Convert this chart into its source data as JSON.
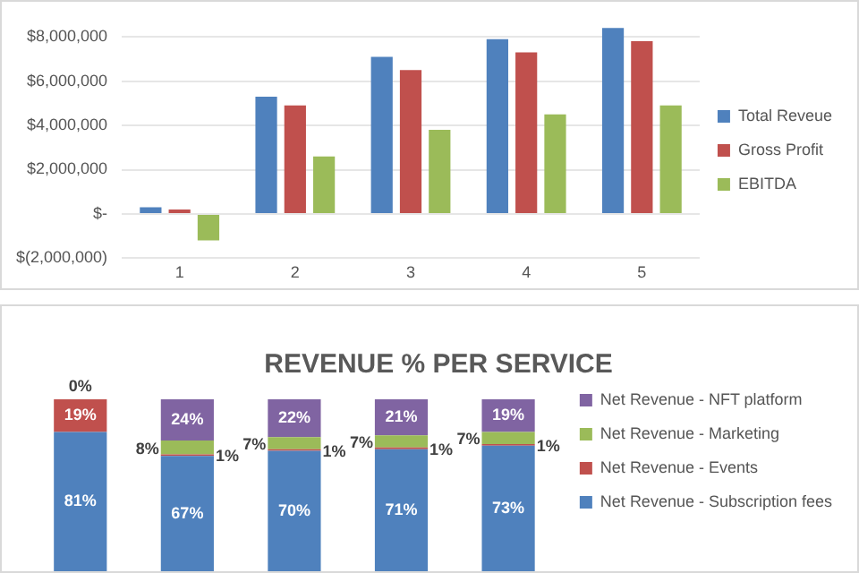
{
  "chart_data": [
    {
      "type": "bar",
      "categories": [
        "1",
        "2",
        "3",
        "4",
        "5"
      ],
      "series": [
        {
          "name": "Total Reveue",
          "color": "#4f81bd",
          "values": [
            300000,
            5300000,
            7100000,
            7900000,
            8400000
          ]
        },
        {
          "name": "Gross Profit",
          "color": "#c0504d",
          "values": [
            200000,
            4900000,
            6500000,
            7300000,
            7800000
          ]
        },
        {
          "name": "EBITDA",
          "color": "#9bbb59",
          "values": [
            -1200000,
            2600000,
            3800000,
            4500000,
            4900000
          ]
        }
      ],
      "ylim": [
        -2000000,
        8500000
      ],
      "yticks": [
        {
          "value": -2000000,
          "label": "$(2,000,000)"
        },
        {
          "value": 0,
          "label": "$-"
        },
        {
          "value": 2000000,
          "label": "$2,000,000"
        },
        {
          "value": 4000000,
          "label": "$4,000,000"
        },
        {
          "value": 6000000,
          "label": "$6,000,000"
        },
        {
          "value": 8000000,
          "label": "$8,000,000"
        }
      ],
      "grid": "y",
      "legend": "right"
    },
    {
      "type": "bar",
      "title": "REVENUE % PER SERVICE",
      "stacked": true,
      "categories": [
        null,
        null,
        null,
        null,
        null
      ],
      "series": [
        {
          "name": "Net Revenue - Subscription fees",
          "color": "#4f81bd",
          "values": [
            81,
            67,
            70,
            71,
            73
          ],
          "value_labels": [
            "81%",
            "67%",
            "70%",
            "71%",
            "73%"
          ]
        },
        {
          "name": "Net Revenue - Events",
          "color": "#c0504d",
          "values": [
            19,
            1,
            1,
            1,
            1
          ],
          "value_labels": [
            "19%",
            "1%",
            "1%",
            "1%",
            "1%"
          ]
        },
        {
          "name": "Net Revenue - Marketing",
          "color": "#9bbb59",
          "values": [
            0,
            8,
            7,
            7,
            7
          ],
          "value_labels": [
            null,
            "8%",
            "7%",
            "7%",
            "7%"
          ]
        },
        {
          "name": "Net Revenue - NFT platform",
          "color": "#8064a2",
          "values": [
            0,
            24,
            22,
            21,
            19
          ],
          "value_labels": [
            "0%",
            "24%",
            "22%",
            "21%",
            "19%"
          ]
        }
      ],
      "ylim": [
        0,
        100
      ],
      "tick_labels": false,
      "legend": "right"
    }
  ]
}
